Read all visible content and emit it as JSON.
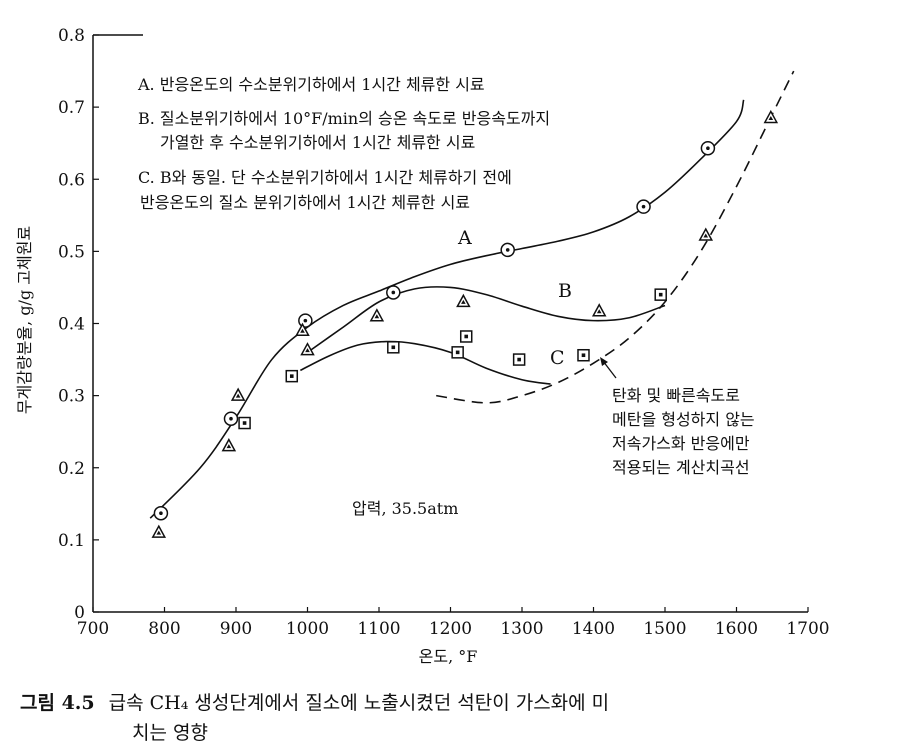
{
  "chart_data": {
    "type": "scatter",
    "xlabel": "온도, °F",
    "ylabel": "무게감량분율, g/g 고체원료",
    "xlim": [
      700,
      1700
    ],
    "ylim": [
      0,
      0.8
    ],
    "x_ticks": [
      "700",
      "800",
      "900",
      "1000",
      "1100",
      "1200",
      "1300",
      "1400",
      "1500",
      "1600",
      "1700"
    ],
    "y_ticks": [
      "0",
      "0.1",
      "0.2",
      "0.3",
      "0.4",
      "0.5",
      "0.6",
      "0.7",
      "0.8"
    ],
    "legend": [
      "A. 반응온도의 수소분위기하에서 1시간 체류한 시료",
      "B. 질소분위기하에서 10°F/min의 승온 속도로 반응속도까지",
      "가열한 후 수소분위기하에서 1시간 체류한 시료",
      "C. B와 동일. 단 수소분위기하에서 1시간 체류하기 전에",
      "반응온도의 질소 분위기하에서 1시간 체류한 시료"
    ],
    "annotation_pressure": "압력, 35.5atm",
    "annotation_dashed": [
      "탄화 및 빠른속도로",
      "메탄을 형성하지 않는",
      "저속가스화 반응에만",
      "적용되는 계산치곡선"
    ],
    "series": [
      {
        "name": "A",
        "marker": "circle-dot",
        "points": [
          [
            795,
            0.137
          ],
          [
            893,
            0.268
          ],
          [
            997,
            0.404
          ],
          [
            1120,
            0.443
          ],
          [
            1280,
            0.502
          ],
          [
            1470,
            0.562
          ],
          [
            1560,
            0.643
          ]
        ],
        "curve": [
          [
            780,
            0.13
          ],
          [
            850,
            0.2
          ],
          [
            900,
            0.27
          ],
          [
            950,
            0.35
          ],
          [
            1000,
            0.395
          ],
          [
            1050,
            0.425
          ],
          [
            1100,
            0.445
          ],
          [
            1150,
            0.465
          ],
          [
            1200,
            0.482
          ],
          [
            1250,
            0.494
          ],
          [
            1300,
            0.504
          ],
          [
            1350,
            0.514
          ],
          [
            1400,
            0.527
          ],
          [
            1450,
            0.548
          ],
          [
            1500,
            0.582
          ],
          [
            1550,
            0.628
          ],
          [
            1600,
            0.68
          ],
          [
            1610,
            0.71
          ]
        ]
      },
      {
        "name": "B",
        "marker": "triangle",
        "points": [
          [
            792,
            0.11
          ],
          [
            890,
            0.23
          ],
          [
            903,
            0.3
          ],
          [
            993,
            0.39
          ],
          [
            1000,
            0.363
          ],
          [
            1097,
            0.41
          ],
          [
            1218,
            0.43
          ],
          [
            1408,
            0.417
          ],
          [
            1557,
            0.522
          ],
          [
            1648,
            0.685
          ]
        ],
        "curve": [
          [
            1000,
            0.36
          ],
          [
            1050,
            0.395
          ],
          [
            1100,
            0.43
          ],
          [
            1150,
            0.448
          ],
          [
            1200,
            0.45
          ],
          [
            1250,
            0.44
          ],
          [
            1300,
            0.424
          ],
          [
            1350,
            0.41
          ],
          [
            1400,
            0.404
          ],
          [
            1450,
            0.408
          ],
          [
            1500,
            0.425
          ]
        ]
      },
      {
        "name": "C",
        "marker": "square-dot",
        "points": [
          [
            912,
            0.262
          ],
          [
            978,
            0.327
          ],
          [
            1120,
            0.367
          ],
          [
            1210,
            0.36
          ],
          [
            1222,
            0.382
          ],
          [
            1296,
            0.35
          ],
          [
            1386,
            0.356
          ],
          [
            1494,
            0.44
          ]
        ],
        "curve": [
          [
            990,
            0.335
          ],
          [
            1030,
            0.355
          ],
          [
            1070,
            0.37
          ],
          [
            1110,
            0.375
          ],
          [
            1150,
            0.372
          ],
          [
            1200,
            0.36
          ],
          [
            1250,
            0.338
          ],
          [
            1300,
            0.322
          ],
          [
            1340,
            0.316
          ]
        ]
      },
      {
        "name": "dashed-calc",
        "style": "dashed",
        "curve": [
          [
            1180,
            0.3
          ],
          [
            1250,
            0.29
          ],
          [
            1300,
            0.3
          ],
          [
            1350,
            0.318
          ],
          [
            1400,
            0.345
          ],
          [
            1450,
            0.38
          ],
          [
            1500,
            0.43
          ],
          [
            1550,
            0.5
          ],
          [
            1600,
            0.59
          ],
          [
            1650,
            0.69
          ],
          [
            1680,
            0.75
          ]
        ]
      }
    ]
  },
  "caption": {
    "number": "그림 4.5",
    "line1": "급속 CH₄ 생성단계에서 질소에 노출시켰던 석탄이 가스화에 미",
    "line2": "치는 영향"
  }
}
